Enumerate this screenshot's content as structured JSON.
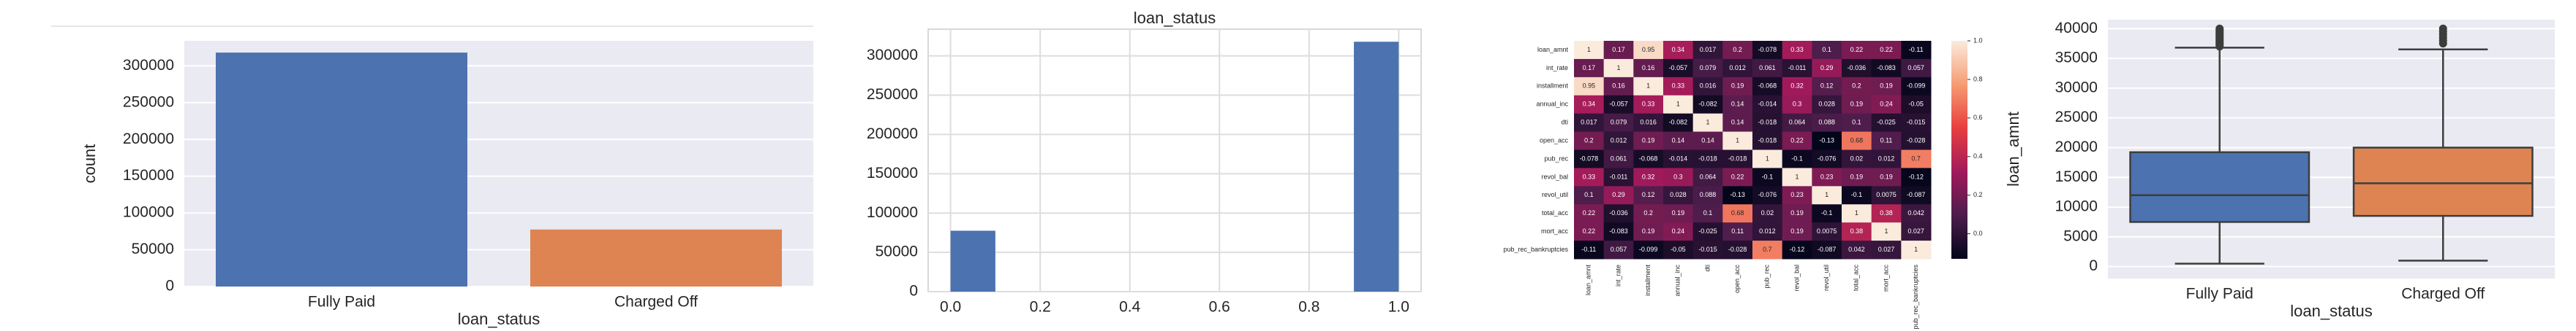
{
  "chart_data": [
    {
      "type": "bar",
      "style": "darkgrid",
      "xlabel": "loan_status",
      "ylabel": "count",
      "categories": [
        "Fully Paid",
        "Charged Off"
      ],
      "values": [
        318000,
        77500
      ],
      "colors": [
        "#4c72b0",
        "#dd8452"
      ],
      "ylim": [
        0,
        334000
      ],
      "yticks": [
        0,
        50000,
        100000,
        150000,
        200000,
        250000,
        300000
      ],
      "grid": true
    },
    {
      "type": "histogram",
      "style": "whitegrid",
      "title": "loan_status",
      "bins": [
        0,
        0.1,
        0.2,
        0.3,
        0.4,
        0.5,
        0.6,
        0.7,
        0.8,
        0.9,
        1.0
      ],
      "counts": [
        77500,
        0,
        0,
        0,
        0,
        0,
        0,
        0,
        0,
        318000
      ],
      "color": "#4c72b0",
      "xlim": [
        -0.05,
        1.05
      ],
      "xticks": [
        {
          "value": 0,
          "label": "0.0"
        },
        0.2,
        0.4,
        0.6,
        0.8,
        {
          "value": 1,
          "label": "1.0"
        }
      ],
      "ylim": [
        0,
        334000
      ],
      "yticks": [
        0,
        50000,
        100000,
        150000,
        200000,
        250000,
        300000
      ],
      "grid": true
    },
    {
      "type": "heatmap",
      "labels": [
        "loan_amnt",
        "int_rate",
        "installment",
        "annual_inc",
        "dti",
        "open_acc",
        "pub_rec",
        "revol_bal",
        "revol_util",
        "total_acc",
        "mort_acc",
        "pub_rec_bankruptcies"
      ],
      "matrix": [
        [
          1,
          0.17,
          0.95,
          0.34,
          0.017,
          0.2,
          -0.078,
          0.33,
          0.1,
          0.22,
          0.22,
          -0.11
        ],
        [
          0.17,
          1,
          0.16,
          -0.057,
          0.079,
          0.012,
          0.061,
          -0.011,
          0.29,
          -0.036,
          -0.083,
          0.057
        ],
        [
          0.95,
          0.16,
          1,
          0.33,
          0.016,
          0.19,
          -0.068,
          0.32,
          0.12,
          0.2,
          0.19,
          -0.099
        ],
        [
          0.34,
          -0.057,
          0.33,
          1,
          -0.082,
          0.14,
          -0.014,
          0.3,
          0.028,
          0.19,
          0.24,
          -0.05
        ],
        [
          0.017,
          0.079,
          0.016,
          -0.082,
          1,
          0.14,
          -0.018,
          0.064,
          0.088,
          0.1,
          -0.025,
          -0.015
        ],
        [
          0.2,
          0.012,
          0.19,
          0.14,
          0.14,
          1,
          -0.018,
          0.22,
          -0.13,
          0.68,
          0.11,
          -0.028
        ],
        [
          -0.078,
          0.061,
          -0.068,
          -0.014,
          -0.018,
          -0.018,
          1,
          -0.1,
          -0.076,
          0.02,
          0.012,
          0.7
        ],
        [
          0.33,
          -0.011,
          0.32,
          0.3,
          0.064,
          0.22,
          -0.1,
          1,
          0.23,
          0.19,
          0.19,
          -0.12
        ],
        [
          0.1,
          0.29,
          0.12,
          0.028,
          0.088,
          -0.13,
          -0.076,
          0.23,
          1,
          -0.1,
          0.0075,
          -0.087
        ],
        [
          0.22,
          -0.036,
          0.2,
          0.19,
          0.1,
          0.68,
          0.02,
          0.19,
          -0.1,
          1,
          0.38,
          0.042
        ],
        [
          0.22,
          -0.083,
          0.19,
          0.24,
          -0.025,
          0.11,
          0.012,
          0.19,
          0.0075,
          0.38,
          1,
          0.027
        ],
        [
          -0.11,
          0.057,
          -0.099,
          -0.05,
          -0.015,
          -0.028,
          0.7,
          -0.12,
          -0.087,
          0.042,
          0.027,
          1
        ]
      ],
      "clim": [
        -0.13,
        1
      ],
      "cticks": [
        {
          "value": 0,
          "label": "0.0"
        },
        0.2,
        0.4,
        0.6,
        0.8,
        {
          "value": 1,
          "label": "1.0"
        }
      ]
    },
    {
      "type": "box",
      "style": "darkgrid",
      "xlabel": "loan_status",
      "ylabel": "loan_amnt",
      "categories": [
        "Fully Paid",
        "Charged Off"
      ],
      "colors": [
        "#4c72b0",
        "#dd8452"
      ],
      "whislo": [
        500,
        1000
      ],
      "q1": [
        7500,
        8525
      ],
      "median": [
        12000,
        14000
      ],
      "q3": [
        19225,
        20000
      ],
      "whishi": [
        36800,
        36500
      ],
      "fliers": [
        [
          37000,
          37200,
          37400,
          37600,
          37800,
          38000,
          38200,
          38400,
          38600,
          38800,
          39000,
          39200,
          39400,
          39600,
          39800,
          40000
        ],
        [
          37500,
          38000,
          38500,
          39000,
          39500,
          40000
        ]
      ],
      "ylim": [
        -2000,
        41500
      ],
      "yticks": [
        0,
        5000,
        10000,
        15000,
        20000,
        25000,
        30000,
        35000,
        40000
      ],
      "grid": true
    }
  ]
}
